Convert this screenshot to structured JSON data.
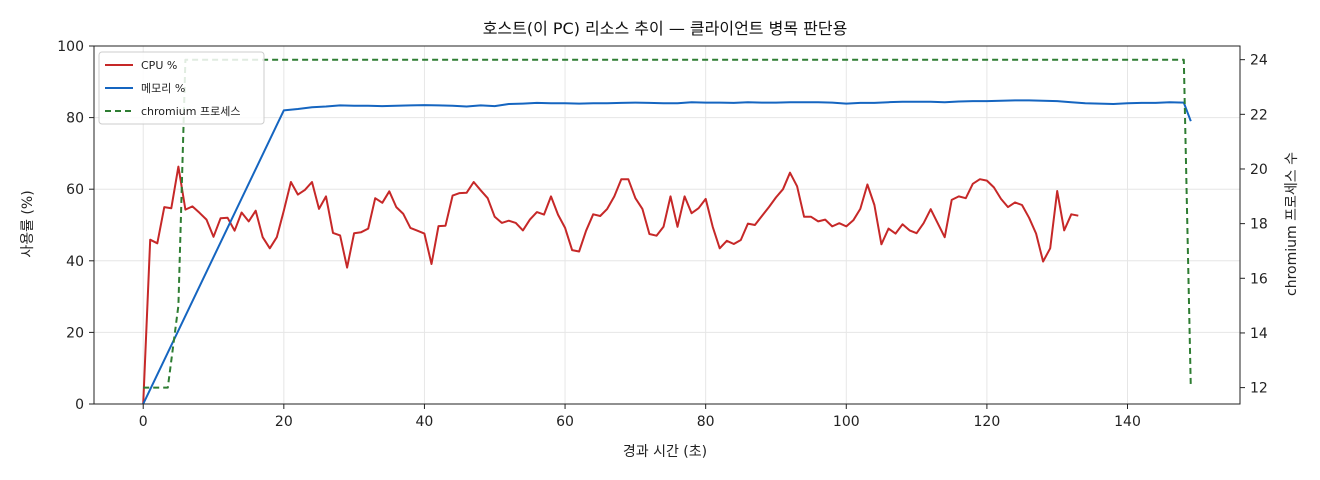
{
  "chart_data": {
    "type": "line",
    "title": "호스트(이 PC) 리소스 추이 — 클라이언트 병목 판단용",
    "xlabel": "경과 시간 (초)",
    "ylabel": "사용률 (%)",
    "y2label": "chromium 프로세스 수",
    "xlim": [
      -7,
      156
    ],
    "ylim": [
      0,
      100
    ],
    "y2lim": [
      11.4,
      24.5
    ],
    "xticks": [
      0,
      20,
      40,
      60,
      80,
      100,
      120,
      140
    ],
    "yticks": [
      0,
      20,
      40,
      60,
      80,
      100
    ],
    "y2ticks": [
      12,
      14,
      16,
      18,
      20,
      22,
      24
    ],
    "grid": true,
    "legend_position": "top-left",
    "series": [
      {
        "name": "CPU %",
        "axis": "left",
        "color": "#c62828",
        "style": "solid",
        "points": [
          [
            0,
            0
          ],
          [
            1,
            45.9
          ],
          [
            2,
            44.9
          ],
          [
            3,
            55
          ],
          [
            4,
            54.7
          ],
          [
            5,
            66.3
          ],
          [
            6,
            54.3
          ],
          [
            7,
            55.2
          ],
          [
            8,
            53.4
          ],
          [
            9,
            51.5
          ],
          [
            10,
            46.7
          ],
          [
            11,
            51.9
          ],
          [
            12,
            52
          ],
          [
            13,
            48.4
          ],
          [
            14,
            53.5
          ],
          [
            15,
            51
          ],
          [
            16,
            54
          ],
          [
            17,
            46.6
          ],
          [
            18,
            43.5
          ],
          [
            19,
            46.6
          ],
          [
            20,
            54
          ],
          [
            21,
            62
          ],
          [
            22,
            58.5
          ],
          [
            23,
            59.8
          ],
          [
            24,
            62
          ],
          [
            25,
            54.5
          ],
          [
            26,
            58
          ],
          [
            27,
            47.8
          ],
          [
            28,
            47.1
          ],
          [
            29,
            38.1
          ],
          [
            30,
            47.7
          ],
          [
            31,
            48
          ],
          [
            32,
            49
          ],
          [
            33,
            57.5
          ],
          [
            34,
            56.2
          ],
          [
            35,
            59.4
          ],
          [
            36,
            55
          ],
          [
            37,
            53.1
          ],
          [
            38,
            49.2
          ],
          [
            39,
            48.4
          ],
          [
            40,
            47.6
          ],
          [
            41,
            39.1
          ],
          [
            42,
            49.7
          ],
          [
            43,
            49.8
          ],
          [
            44,
            58.2
          ],
          [
            45,
            58.9
          ],
          [
            46,
            59
          ],
          [
            47,
            62
          ],
          [
            48,
            59.7
          ],
          [
            49,
            57.5
          ],
          [
            50,
            52.3
          ],
          [
            51,
            50.6
          ],
          [
            52,
            51.2
          ],
          [
            53,
            50.6
          ],
          [
            54,
            48.5
          ],
          [
            55,
            51.5
          ],
          [
            56,
            53.6
          ],
          [
            57,
            52.9
          ],
          [
            58,
            58
          ],
          [
            59,
            52.9
          ],
          [
            60,
            49.2
          ],
          [
            61,
            43
          ],
          [
            62,
            42.6
          ],
          [
            63,
            48.4
          ],
          [
            64,
            53
          ],
          [
            65,
            52.5
          ],
          [
            66,
            54.5
          ],
          [
            67,
            58
          ],
          [
            68,
            62.8
          ],
          [
            69,
            62.8
          ],
          [
            70,
            57.5
          ],
          [
            71,
            54.5
          ],
          [
            72,
            47.5
          ],
          [
            73,
            47
          ],
          [
            74,
            49.5
          ],
          [
            75,
            58
          ],
          [
            76,
            49.5
          ],
          [
            77,
            58
          ],
          [
            78,
            53.3
          ],
          [
            79,
            54.7
          ],
          [
            80,
            57.3
          ],
          [
            81,
            49.5
          ],
          [
            82,
            43.5
          ],
          [
            83,
            45.6
          ],
          [
            84,
            44.7
          ],
          [
            85,
            45.8
          ],
          [
            86,
            50.4
          ],
          [
            87,
            50
          ],
          [
            88,
            52.5
          ],
          [
            89,
            55
          ],
          [
            90,
            57.7
          ],
          [
            91,
            60
          ],
          [
            92,
            64.6
          ],
          [
            93,
            60.8
          ],
          [
            94,
            52.3
          ],
          [
            95,
            52.3
          ],
          [
            96,
            51
          ],
          [
            97,
            51.5
          ],
          [
            98,
            49.6
          ],
          [
            99,
            50.5
          ],
          [
            100,
            49.6
          ],
          [
            101,
            51.3
          ],
          [
            102,
            54.5
          ],
          [
            103,
            61.3
          ],
          [
            104,
            55.6
          ],
          [
            105,
            44.6
          ],
          [
            106,
            49
          ],
          [
            107,
            47.6
          ],
          [
            108,
            50.2
          ],
          [
            109,
            48.5
          ],
          [
            110,
            47.7
          ],
          [
            111,
            50.5
          ],
          [
            112,
            54.4
          ],
          [
            113,
            50.5
          ],
          [
            114,
            46.6
          ],
          [
            115,
            57
          ],
          [
            116,
            58
          ],
          [
            117,
            57.5
          ],
          [
            118,
            61.5
          ],
          [
            119,
            62.8
          ],
          [
            120,
            62.4
          ],
          [
            121,
            60.5
          ],
          [
            122,
            57.3
          ],
          [
            123,
            55
          ],
          [
            124,
            56.3
          ],
          [
            125,
            55.6
          ],
          [
            126,
            52
          ],
          [
            127,
            47.6
          ],
          [
            128,
            39.8
          ],
          [
            129,
            43.5
          ],
          [
            130,
            59.5
          ],
          [
            131,
            48.5
          ],
          [
            132,
            53
          ],
          [
            133,
            52.6
          ]
        ]
      },
      {
        "name": "메모리 %",
        "axis": "left",
        "color": "#1565c0",
        "style": "solid",
        "points": [
          [
            0,
            0
          ],
          [
            20,
            82
          ],
          [
            22,
            82.4
          ],
          [
            24,
            82.9
          ],
          [
            26,
            83.1
          ],
          [
            28,
            83.4
          ],
          [
            30,
            83.3
          ],
          [
            32,
            83.3
          ],
          [
            34,
            83.2
          ],
          [
            36,
            83.3
          ],
          [
            38,
            83.4
          ],
          [
            40,
            83.5
          ],
          [
            42,
            83.4
          ],
          [
            44,
            83.3
          ],
          [
            46,
            83.1
          ],
          [
            48,
            83.4
          ],
          [
            50,
            83.2
          ],
          [
            52,
            83.8
          ],
          [
            54,
            83.9
          ],
          [
            56,
            84.1
          ],
          [
            58,
            84
          ],
          [
            60,
            84
          ],
          [
            62,
            83.9
          ],
          [
            64,
            84
          ],
          [
            66,
            84
          ],
          [
            68,
            84.1
          ],
          [
            70,
            84.2
          ],
          [
            72,
            84.1
          ],
          [
            74,
            84
          ],
          [
            76,
            84
          ],
          [
            78,
            84.3
          ],
          [
            80,
            84.2
          ],
          [
            82,
            84.2
          ],
          [
            84,
            84.1
          ],
          [
            86,
            84.3
          ],
          [
            88,
            84.2
          ],
          [
            90,
            84.2
          ],
          [
            92,
            84.3
          ],
          [
            94,
            84.3
          ],
          [
            96,
            84.3
          ],
          [
            98,
            84.2
          ],
          [
            100,
            83.9
          ],
          [
            102,
            84.1
          ],
          [
            104,
            84.1
          ],
          [
            106,
            84.3
          ],
          [
            108,
            84.4
          ],
          [
            110,
            84.4
          ],
          [
            112,
            84.4
          ],
          [
            114,
            84.3
          ],
          [
            116,
            84.5
          ],
          [
            118,
            84.6
          ],
          [
            120,
            84.6
          ],
          [
            122,
            84.7
          ],
          [
            124,
            84.8
          ],
          [
            126,
            84.8
          ],
          [
            128,
            84.7
          ],
          [
            130,
            84.6
          ],
          [
            132,
            84.3
          ],
          [
            134,
            84
          ],
          [
            136,
            83.9
          ],
          [
            138,
            83.8
          ],
          [
            140,
            84
          ],
          [
            142,
            84.1
          ],
          [
            144,
            84.1
          ],
          [
            146,
            84.3
          ],
          [
            148,
            84.2
          ],
          [
            149,
            79
          ]
        ]
      },
      {
        "name": "chromium 프로세스",
        "axis": "right",
        "color": "#2e7d32",
        "style": "dashed",
        "points": [
          [
            0,
            12
          ],
          [
            3.5,
            12
          ],
          [
            5,
            15
          ],
          [
            6,
            24
          ],
          [
            148,
            24
          ],
          [
            149,
            12
          ]
        ]
      }
    ]
  }
}
